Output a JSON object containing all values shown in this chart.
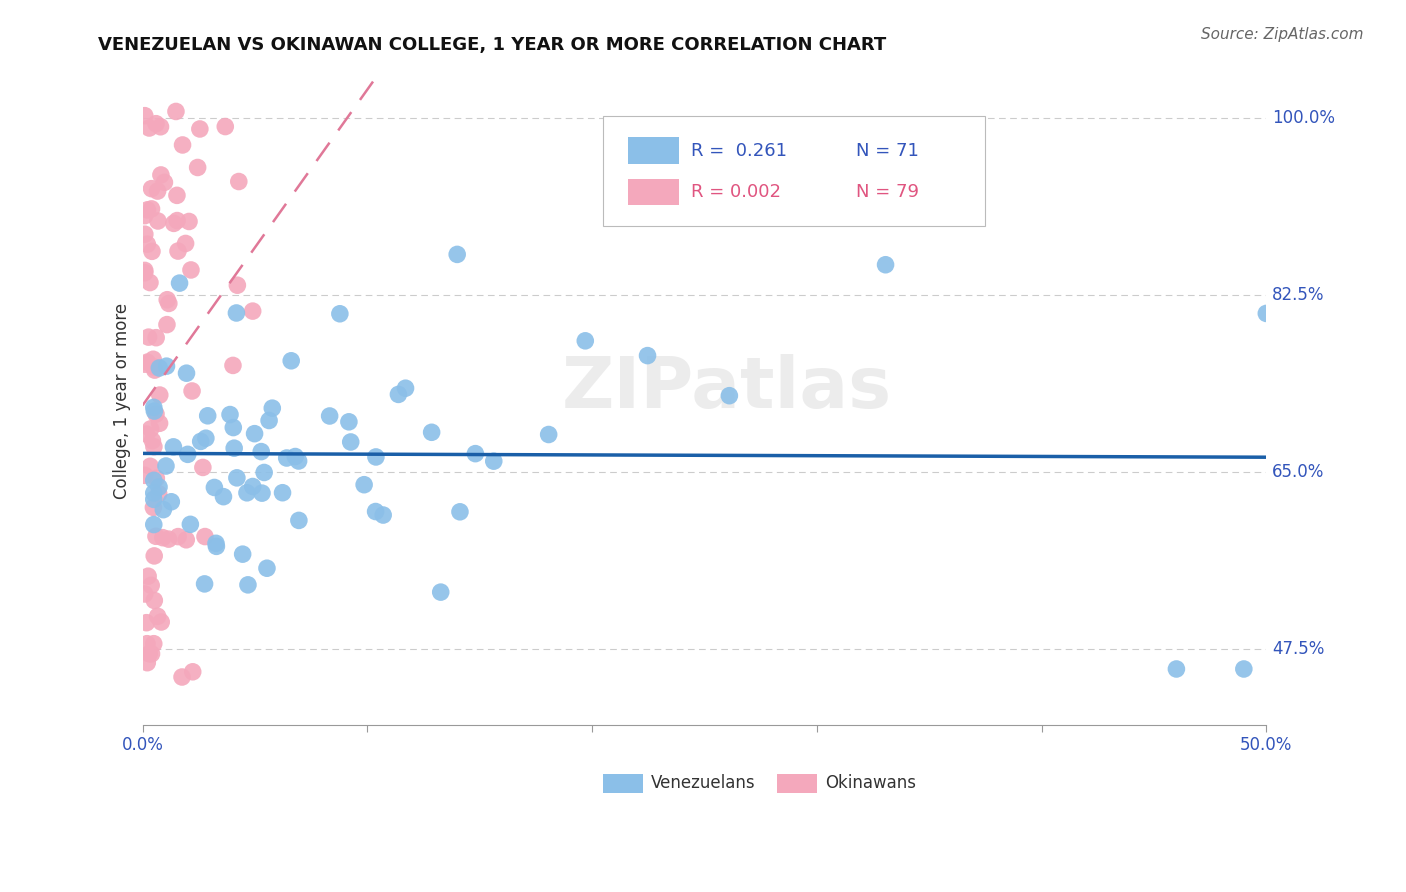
{
  "title": "VENEZUELAN VS OKINAWAN COLLEGE, 1 YEAR OR MORE CORRELATION CHART",
  "source": "Source: ZipAtlas.com",
  "ylabel": "College, 1 year or more",
  "legend_blue_R": "R =  0.261",
  "legend_blue_N": "N = 71",
  "legend_pink_R": "R = 0.002",
  "legend_pink_N": "N = 79",
  "legend_blue_label": "Venezuelans",
  "legend_pink_label": "Okinawans",
  "blue_color": "#8bbfe8",
  "pink_color": "#f4a8bc",
  "blue_line_color": "#1a5fa8",
  "pink_line_color": "#e07898",
  "n_blue": 71,
  "n_pink": 79,
  "xmin": 0.0,
  "xmax": 0.5,
  "ymin": 0.4,
  "ymax": 1.04,
  "ytick_vals": [
    0.475,
    0.65,
    0.825,
    1.0
  ],
  "ytick_labels": [
    "47.5%",
    "65.0%",
    "82.5%",
    "100.0%"
  ],
  "xtick_vals": [
    0.0,
    0.1,
    0.2,
    0.3,
    0.4,
    0.5
  ],
  "xtick_labels": [
    "0.0%",
    "",
    "",
    "",
    "",
    "50.0%"
  ],
  "watermark": "ZIPatlas",
  "fig_width": 14.06,
  "fig_height": 8.92,
  "title_fontsize": 13,
  "axis_label_fontsize": 12,
  "tick_label_fontsize": 12,
  "legend_fontsize": 13,
  "source_fontsize": 11
}
